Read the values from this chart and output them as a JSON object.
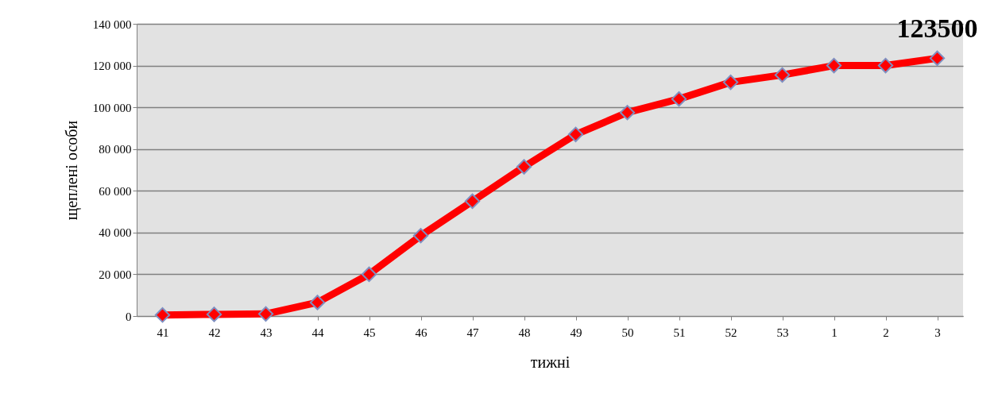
{
  "chart_data": {
    "type": "line",
    "xlabel": "тижні",
    "ylabel": "щеплені особи",
    "categories": [
      "41",
      "42",
      "43",
      "44",
      "45",
      "46",
      "47",
      "48",
      "49",
      "50",
      "51",
      "52",
      "53",
      "1",
      "2",
      "3"
    ],
    "series": [
      {
        "color": "#ff0000",
        "values": [
          500,
          800,
          1000,
          6500,
          20000,
          38500,
          55000,
          71500,
          87000,
          97500,
          104000,
          112000,
          115500,
          120000,
          120000,
          123500
        ],
        "value_labels": [
          null,
          null,
          null,
          null,
          null,
          null,
          null,
          null,
          null,
          null,
          null,
          null,
          null,
          null,
          null,
          "123500"
        ]
      }
    ],
    "ylim": [
      0,
      140000
    ],
    "yticks": [
      {
        "value": 0,
        "label": "0"
      },
      {
        "value": 20000,
        "label": "20 000"
      },
      {
        "value": 40000,
        "label": "40 000"
      },
      {
        "value": 60000,
        "label": "60 000"
      },
      {
        "value": 80000,
        "label": "80 000"
      },
      {
        "value": 100000,
        "label": "100 000"
      },
      {
        "value": 120000,
        "label": "120 000"
      },
      {
        "value": 140000,
        "label": "140 000"
      }
    ],
    "grid": "y",
    "marker": "diamond",
    "line_style": "solid",
    "legend": false
  }
}
